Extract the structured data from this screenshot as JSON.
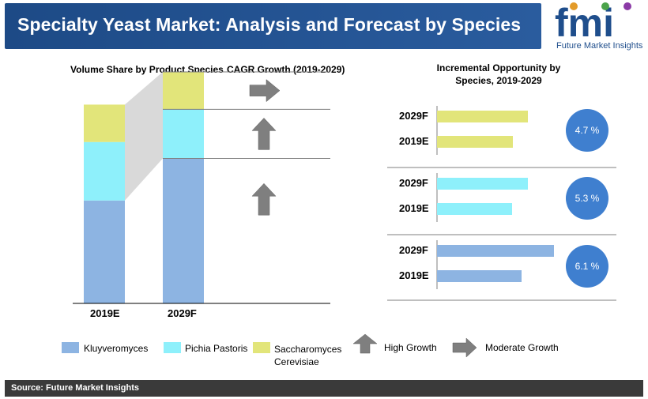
{
  "title": "Specialty Yeast Market: Analysis and Forecast by Species",
  "logo": {
    "text": "fmi",
    "subtitle": "Future Market Insights"
  },
  "headers": {
    "volume_share": "Volume Share by Product Species",
    "cagr": "CAGR Growth (2019-2029)",
    "incremental_line1": "Incremental Opportunity by",
    "incremental_line2": "Species, 2019-2029"
  },
  "colors": {
    "kluyveromyces": "#8db4e2",
    "pichia": "#8ef0fb",
    "saccharomyces": "#e2e57a",
    "title_bg": "#1f4e8c",
    "badge": "#3f7fcf",
    "arrow": "#7f7f7f"
  },
  "chart_data": [
    {
      "type": "bar",
      "stacked": true,
      "categories": [
        "2019E",
        "2029F"
      ],
      "series": [
        {
          "name": "Kluyveromyces",
          "values": [
            0.44,
            0.62
          ]
        },
        {
          "name": "Pichia Pastoris",
          "values": [
            0.25,
            0.21
          ]
        },
        {
          "name": "Saccharomyces Cerevisiae",
          "values": [
            0.16,
            0.16
          ]
        }
      ],
      "title": "Volume Share by Product Species"
    },
    {
      "type": "bar",
      "orientation": "horizontal",
      "title": "Incremental Opportunity by Species, 2019-2029",
      "groups": [
        {
          "species": "Saccharomyces Cerevisiae",
          "values": {
            "2029F": 115,
            "2019E": 96
          },
          "cagr": "4.7 %"
        },
        {
          "species": "Pichia Pastoris",
          "values": {
            "2029F": 115,
            "2019E": 95
          },
          "cagr": "5.3 %"
        },
        {
          "species": "Kluyveromyces",
          "values": {
            "2029F": 148,
            "2019E": 107
          },
          "cagr": "6.1 %"
        }
      ]
    }
  ],
  "cagr_arrows": [
    {
      "series": "Saccharomyces Cerevisiae",
      "kind": "Moderate Growth"
    },
    {
      "series": "Pichia Pastoris",
      "kind": "High Growth"
    },
    {
      "series": "Kluyveromyces",
      "kind": "High Growth"
    }
  ],
  "bottom_labels": [
    "2019E",
    "2029F"
  ],
  "legend": {
    "kluyveromyces": "Kluyveromyces",
    "pichia": "Pichia Pastoris",
    "saccharomyces_line1": "Saccharomyces",
    "saccharomyces_line2": "Cerevisiae",
    "high_growth": "High Growth",
    "moderate_growth": "Moderate  Growth"
  },
  "source": "Source: Future Market Insights"
}
